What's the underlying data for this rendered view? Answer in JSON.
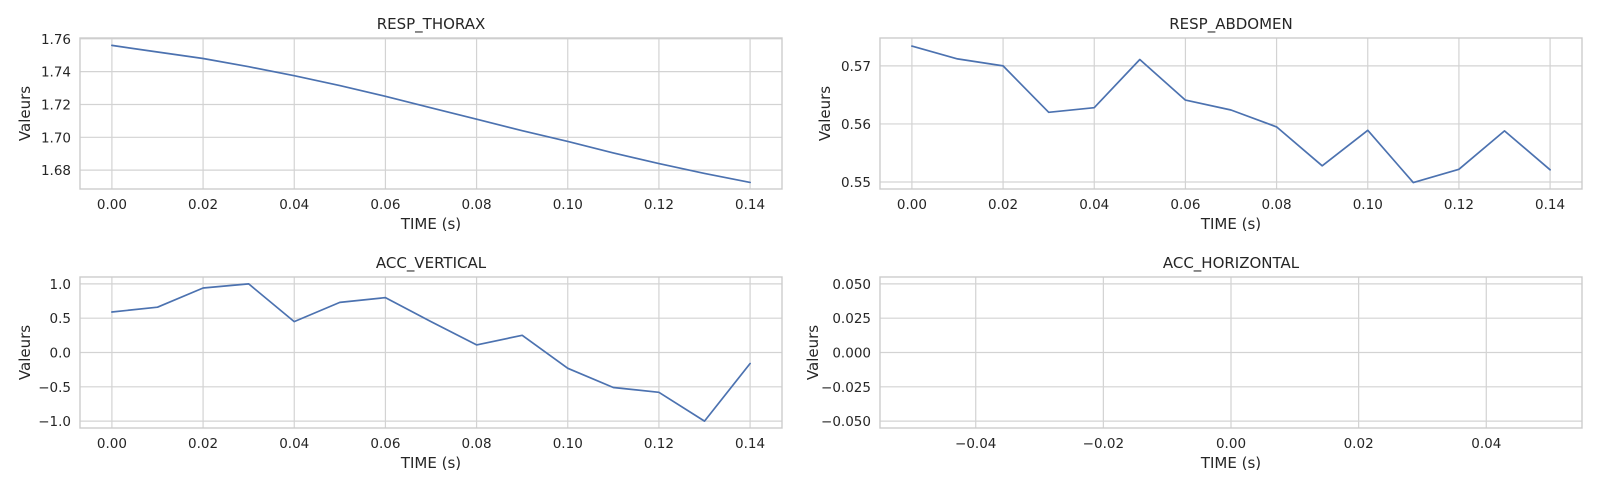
{
  "colors": {
    "line": "#4c72b0",
    "grid": "#d3d3d3",
    "frame": "#cccccc",
    "text": "#262626"
  },
  "chart_data": [
    {
      "type": "line",
      "title": "RESP_THORAX",
      "xlabel": "TIME (s)",
      "ylabel": "Valeurs",
      "xlim": [
        -0.007,
        0.147
      ],
      "ylim": [
        1.6685,
        1.7605
      ],
      "xticks": [
        0.0,
        0.02,
        0.04,
        0.06,
        0.08,
        0.1,
        0.12,
        0.14
      ],
      "xtick_labels": [
        "0.00",
        "0.02",
        "0.04",
        "0.06",
        "0.08",
        "0.10",
        "0.12",
        "0.14"
      ],
      "yticks": [
        1.68,
        1.7,
        1.72,
        1.74,
        1.76
      ],
      "ytick_labels": [
        "1.68",
        "1.70",
        "1.72",
        "1.74",
        "1.76"
      ],
      "grid": true,
      "x": [
        0.0,
        0.01,
        0.02,
        0.03,
        0.04,
        0.05,
        0.06,
        0.07,
        0.08,
        0.09,
        0.1,
        0.11,
        0.12,
        0.13,
        0.14
      ],
      "values": [
        1.756,
        1.752,
        1.748,
        1.743,
        1.7375,
        1.7315,
        1.725,
        1.718,
        1.711,
        1.704,
        1.6975,
        1.6905,
        1.684,
        1.678,
        1.6725
      ]
    },
    {
      "type": "line",
      "title": "RESP_ABDOMEN",
      "xlabel": "TIME (s)",
      "ylabel": "Valeurs",
      "xlim": [
        -0.007,
        0.147
      ],
      "ylim": [
        0.5488,
        0.5748
      ],
      "xticks": [
        0.0,
        0.02,
        0.04,
        0.06,
        0.08,
        0.1,
        0.12,
        0.14
      ],
      "xtick_labels": [
        "0.00",
        "0.02",
        "0.04",
        "0.06",
        "0.08",
        "0.10",
        "0.12",
        "0.14"
      ],
      "yticks": [
        0.55,
        0.56,
        0.57
      ],
      "ytick_labels": [
        "0.55",
        "0.56",
        "0.57"
      ],
      "grid": true,
      "x": [
        0.0,
        0.01,
        0.02,
        0.03,
        0.04,
        0.05,
        0.06,
        0.07,
        0.08,
        0.09,
        0.1,
        0.11,
        0.12,
        0.13,
        0.14
      ],
      "values": [
        0.5734,
        0.5712,
        0.57,
        0.562,
        0.5628,
        0.5711,
        0.5641,
        0.5624,
        0.5595,
        0.5528,
        0.5589,
        0.5499,
        0.5522,
        0.5588,
        0.5521
      ]
    },
    {
      "type": "line",
      "title": "ACC_VERTICAL",
      "xlabel": "TIME (s)",
      "ylabel": "Valeurs",
      "xlim": [
        -0.007,
        0.147
      ],
      "ylim": [
        -1.1,
        1.1
      ],
      "xticks": [
        0.0,
        0.02,
        0.04,
        0.06,
        0.08,
        0.1,
        0.12,
        0.14
      ],
      "xtick_labels": [
        "0.00",
        "0.02",
        "0.04",
        "0.06",
        "0.08",
        "0.10",
        "0.12",
        "0.14"
      ],
      "yticks": [
        -1.0,
        -0.5,
        0.0,
        0.5,
        1.0
      ],
      "ytick_labels": [
        "−1.0",
        "−0.5",
        "0.0",
        "0.5",
        "1.0"
      ],
      "grid": true,
      "x": [
        0.0,
        0.01,
        0.02,
        0.03,
        0.04,
        0.05,
        0.06,
        0.07,
        0.08,
        0.09,
        0.1,
        0.11,
        0.12,
        0.13,
        0.14
      ],
      "values": [
        0.59,
        0.66,
        0.94,
        1.0,
        0.45,
        0.73,
        0.8,
        0.45,
        0.11,
        0.25,
        -0.23,
        -0.51,
        -0.58,
        -1.0,
        -0.16
      ]
    },
    {
      "type": "line",
      "title": "ACC_HORIZONTAL",
      "xlabel": "TIME (s)",
      "ylabel": "Valeurs",
      "xlim": [
        -0.055,
        0.055
      ],
      "ylim": [
        -0.055,
        0.055
      ],
      "xticks": [
        -0.04,
        -0.02,
        0.0,
        0.02,
        0.04
      ],
      "xtick_labels": [
        "−0.04",
        "−0.02",
        "0.00",
        "0.02",
        "0.04"
      ],
      "yticks": [
        -0.05,
        -0.025,
        0.0,
        0.025,
        0.05
      ],
      "ytick_labels": [
        "−0.050",
        "−0.025",
        "0.000",
        "0.025",
        "0.050"
      ],
      "grid": true,
      "x": [],
      "values": []
    }
  ]
}
